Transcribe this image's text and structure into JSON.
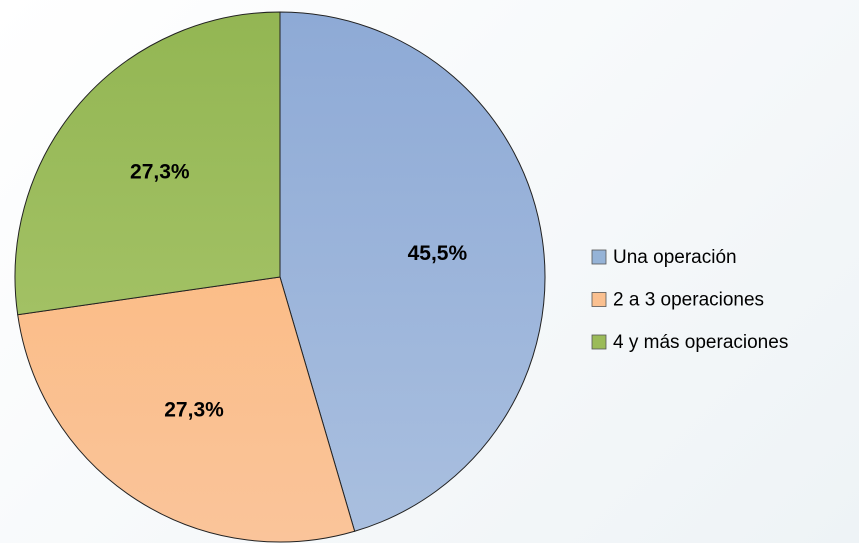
{
  "chart_data": {
    "type": "pie",
    "categories": [
      "Una operación",
      "2 a 3 operaciones",
      "4 y más operaciones"
    ],
    "values": [
      45.5,
      27.3,
      27.3
    ],
    "value_labels": [
      "45,5%",
      "27,3%",
      "27,3%"
    ],
    "colors": [
      "#95b3d7",
      "#fac090",
      "#9bbb59"
    ],
    "legend": "right"
  }
}
